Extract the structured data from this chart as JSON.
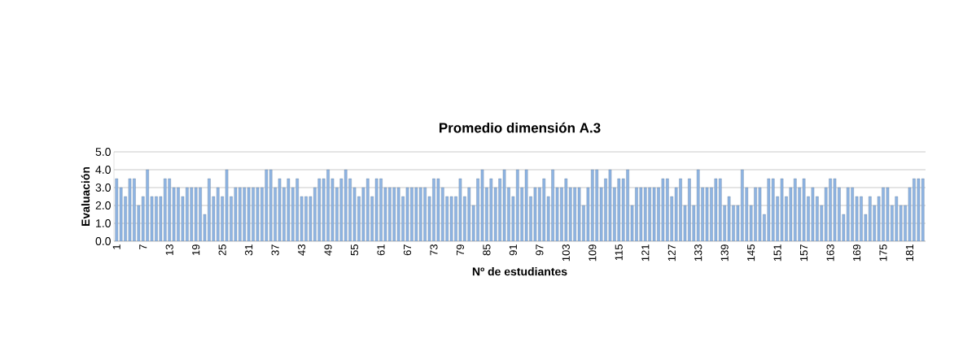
{
  "chart_data": {
    "type": "bar",
    "title": "Promedio dimensión A.3",
    "xlabel": "Nº de estudiantes",
    "ylabel": "Evaluación",
    "categories": [
      "1",
      null,
      null,
      null,
      null,
      null,
      "7",
      null,
      null,
      null,
      null,
      null,
      "13",
      null,
      null,
      null,
      null,
      null,
      "19",
      null,
      null,
      null,
      null,
      null,
      "25",
      null,
      null,
      null,
      null,
      null,
      "31",
      null,
      null,
      null,
      null,
      null,
      "37",
      null,
      null,
      null,
      null,
      null,
      "43",
      null,
      null,
      null,
      null,
      null,
      "49",
      null,
      null,
      null,
      null,
      null,
      "55",
      null,
      null,
      null,
      null,
      null,
      "61",
      null,
      null,
      null,
      null,
      null,
      "67",
      null,
      null,
      null,
      null,
      null,
      "73",
      null,
      null,
      null,
      null,
      null,
      "79",
      null,
      null,
      null,
      null,
      null,
      "85",
      null,
      null,
      null,
      null,
      null,
      "91",
      null,
      null,
      null,
      null,
      null,
      "97",
      null,
      null,
      null,
      null,
      null,
      "103",
      null,
      null,
      null,
      null,
      null,
      "109",
      null,
      null,
      null,
      null,
      null,
      "115",
      null,
      null,
      null,
      null,
      null,
      "121",
      null,
      null,
      null,
      null,
      null,
      "127",
      null,
      null,
      null,
      null,
      null,
      "133",
      null,
      null,
      null,
      null,
      null,
      "139",
      null,
      null,
      null,
      null,
      null,
      "145",
      null,
      null,
      null,
      null,
      null,
      "151",
      null,
      null,
      null,
      null,
      null,
      "157",
      null,
      null,
      null,
      null,
      null,
      "163",
      null,
      null,
      null,
      null,
      null,
      "169",
      null,
      null,
      null,
      null,
      null,
      "175",
      null,
      null,
      null,
      null,
      null,
      "181",
      null,
      null,
      null
    ],
    "values": [
      3.5,
      3.0,
      2.5,
      3.5,
      3.5,
      2.0,
      2.5,
      4.0,
      2.5,
      2.5,
      2.5,
      3.5,
      3.5,
      3.0,
      3.0,
      2.5,
      3.0,
      3.0,
      3.0,
      3.0,
      1.5,
      3.5,
      2.5,
      3.0,
      2.5,
      4.0,
      2.5,
      3.0,
      3.0,
      3.0,
      3.0,
      3.0,
      3.0,
      3.0,
      4.0,
      4.0,
      3.0,
      3.5,
      3.0,
      3.5,
      3.0,
      3.5,
      2.5,
      2.5,
      2.5,
      3.0,
      3.5,
      3.5,
      4.0,
      3.5,
      3.0,
      3.5,
      4.0,
      3.5,
      3.0,
      2.5,
      3.0,
      3.5,
      2.5,
      3.5,
      3.5,
      3.0,
      3.0,
      3.0,
      3.0,
      2.5,
      3.0,
      3.0,
      3.0,
      3.0,
      3.0,
      2.5,
      3.5,
      3.5,
      3.0,
      2.5,
      2.5,
      2.5,
      3.5,
      2.5,
      3.0,
      2.0,
      3.5,
      4.0,
      3.0,
      3.5,
      3.0,
      3.5,
      4.0,
      3.0,
      2.5,
      4.0,
      3.0,
      4.0,
      2.5,
      3.0,
      3.0,
      3.5,
      2.5,
      4.0,
      3.0,
      3.0,
      3.5,
      3.0,
      3.0,
      3.0,
      2.0,
      3.0,
      4.0,
      4.0,
      3.0,
      3.5,
      4.0,
      3.0,
      3.5,
      3.5,
      4.0,
      2.0,
      3.0,
      3.0,
      3.0,
      3.0,
      3.0,
      3.0,
      3.5,
      3.5,
      2.5,
      3.0,
      3.5,
      2.0,
      3.5,
      2.0,
      4.0,
      3.0,
      3.0,
      3.0,
      3.5,
      3.5,
      2.0,
      2.5,
      2.0,
      2.0,
      4.0,
      3.0,
      2.0,
      3.0,
      3.0,
      1.5,
      3.5,
      3.5,
      2.5,
      3.5,
      2.5,
      3.0,
      3.5,
      3.0,
      3.5,
      2.5,
      3.0,
      2.5,
      2.0,
      3.0,
      3.5,
      3.5,
      3.0,
      1.5,
      3.0,
      3.0,
      2.5,
      2.5,
      1.5,
      2.5,
      2.0,
      2.5,
      3.0,
      3.0,
      2.0,
      2.5,
      2.0,
      2.0,
      3.0,
      3.5,
      3.5,
      3.5
    ],
    "color": "#8eb4e3",
    "ylim": [
      0,
      5
    ],
    "yticks": [
      {
        "value": 0,
        "label": "0.0"
      },
      {
        "value": 1,
        "label": "1.0"
      },
      {
        "value": 2,
        "label": "2.0"
      },
      {
        "value": 3,
        "label": "3.0"
      },
      {
        "value": 4,
        "label": "4.0"
      },
      {
        "value": 5,
        "label": "5.0"
      }
    ],
    "grid": "y"
  }
}
